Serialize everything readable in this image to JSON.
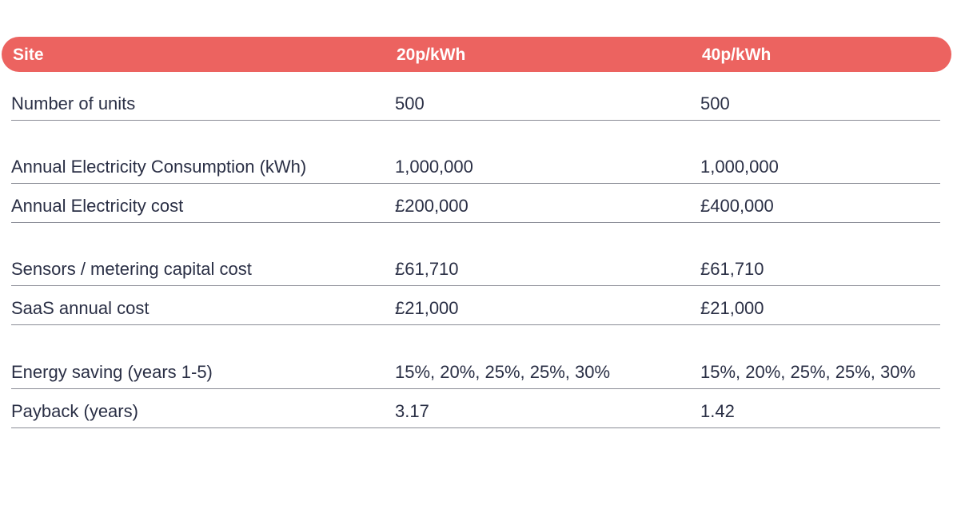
{
  "table": {
    "headers": [
      "Site",
      "20p/kWh",
      "40p/kWh"
    ],
    "rows": [
      {
        "label": "Number of units",
        "v20": "500",
        "v40": "500"
      },
      {
        "label": "Annual Electricity Consumption (kWh)",
        "v20": "1,000,000",
        "v40": "1,000,000"
      },
      {
        "label": "Annual Electricity cost",
        "v20": "£200,000",
        "v40": "£400,000"
      },
      {
        "label": "Sensors / metering capital cost",
        "v20": "£61,710",
        "v40": "£61,710"
      },
      {
        "label": "SaaS annual cost",
        "v20": "£21,000",
        "v40": "£21,000"
      },
      {
        "label": "Energy saving (years 1-5)",
        "v20": "15%, 20%, 25%, 25%, 30%",
        "v40": "15%, 20%, 25%, 25%, 30%"
      },
      {
        "label": "Payback (years)",
        "v20": "3.17",
        "v40": "1.42"
      }
    ]
  },
  "colors": {
    "header_bg": "#ec6360",
    "header_text": "#ffffff",
    "body_text": "#2a2f45",
    "divider": "#8a8c96"
  }
}
